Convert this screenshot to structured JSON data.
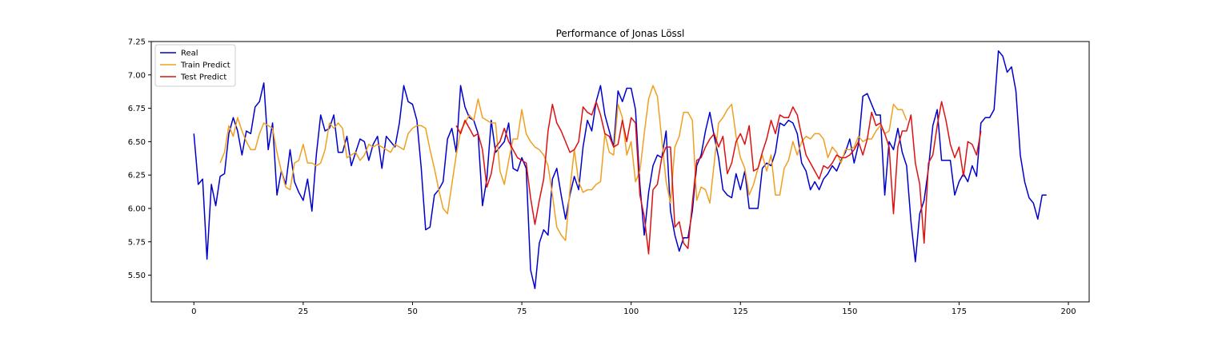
{
  "chart_data": {
    "type": "line",
    "title": "Performance of Jonas Lössl",
    "xlabel": "",
    "ylabel": "",
    "xlim": [
      -9.75,
      204.75
    ],
    "ylim": [
      5.3,
      7.25
    ],
    "xticks": [
      0,
      25,
      50,
      75,
      100,
      125,
      150,
      175,
      200
    ],
    "yticks": [
      5.5,
      5.75,
      6.0,
      6.25,
      6.5,
      6.75,
      7.0,
      7.25
    ],
    "ytick_labels": [
      "5.50",
      "5.75",
      "6.00",
      "6.25",
      "6.50",
      "6.75",
      "7.00",
      "7.25"
    ],
    "grid": false,
    "legend_position": "top-left",
    "series": [
      {
        "name": "Real",
        "color": "#0000cc",
        "x_start": 0,
        "values": [
          6.56,
          6.18,
          6.22,
          5.62,
          6.18,
          6.02,
          6.24,
          6.26,
          6.56,
          6.68,
          6.58,
          6.4,
          6.58,
          6.56,
          6.76,
          6.8,
          6.94,
          6.44,
          6.64,
          6.1,
          6.28,
          6.18,
          6.44,
          6.2,
          6.12,
          6.06,
          6.22,
          5.98,
          6.4,
          6.7,
          6.58,
          6.6,
          6.7,
          6.42,
          6.42,
          6.54,
          6.32,
          6.42,
          6.52,
          6.5,
          6.36,
          6.48,
          6.54,
          6.3,
          6.54,
          6.5,
          6.46,
          6.64,
          6.92,
          6.8,
          6.78,
          6.66,
          6.3,
          5.84,
          5.86,
          6.1,
          6.14,
          6.2,
          6.52,
          6.6,
          6.42,
          6.92,
          6.76,
          6.68,
          6.66,
          6.56,
          6.02,
          6.22,
          6.66,
          6.42,
          6.46,
          6.5,
          6.64,
          6.3,
          6.28,
          6.38,
          6.3,
          5.54,
          5.4,
          5.74,
          5.84,
          5.8,
          6.22,
          6.3,
          6.1,
          5.92,
          6.1,
          6.24,
          6.14,
          6.46,
          6.66,
          6.58,
          6.8,
          6.92,
          6.7,
          6.58,
          6.46,
          6.88,
          6.8,
          6.9,
          6.9,
          6.74,
          6.18,
          5.8,
          6.12,
          6.32,
          6.4,
          6.38,
          6.58,
          5.98,
          5.8,
          5.68,
          5.78,
          5.78,
          5.98,
          6.32,
          6.4,
          6.58,
          6.72,
          6.54,
          6.38,
          6.14,
          6.1,
          6.08,
          6.26,
          6.14,
          6.28,
          6.0,
          6.0,
          6.0,
          6.3,
          6.34,
          6.32,
          6.42,
          6.64,
          6.62,
          6.66,
          6.64,
          6.56,
          6.34,
          6.28,
          6.14,
          6.2,
          6.14,
          6.22,
          6.26,
          6.32,
          6.28,
          6.36,
          6.42,
          6.52,
          6.34,
          6.48,
          6.84,
          6.86,
          6.78,
          6.7,
          6.7,
          6.1,
          6.5,
          6.44,
          6.6,
          6.42,
          6.32,
          5.9,
          5.6,
          5.96,
          6.06,
          6.3,
          6.62,
          6.74,
          6.36,
          6.36,
          6.36,
          6.1,
          6.2,
          6.26,
          6.2,
          6.32,
          6.24,
          6.64,
          6.68,
          6.68,
          6.74,
          7.18,
          7.14,
          7.02,
          7.06,
          6.88,
          6.4,
          6.2,
          6.08,
          6.04,
          5.92,
          6.1,
          6.1
        ]
      },
      {
        "name": "Train Predict",
        "color": "#f0a020",
        "x_start": 6,
        "values": [
          6.34,
          6.42,
          6.62,
          6.54,
          6.68,
          6.58,
          6.5,
          6.44,
          6.44,
          6.56,
          6.64,
          6.62,
          6.6,
          6.42,
          6.28,
          6.16,
          6.14,
          6.34,
          6.36,
          6.48,
          6.34,
          6.34,
          6.32,
          6.34,
          6.44,
          6.64,
          6.6,
          6.64,
          6.6,
          6.38,
          6.4,
          6.42,
          6.36,
          6.4,
          6.48,
          6.46,
          6.48,
          6.46,
          6.44,
          6.42,
          6.48,
          6.46,
          6.44,
          6.56,
          6.6,
          6.62,
          6.62,
          6.6,
          6.44,
          6.3,
          6.14,
          6.0,
          5.96,
          6.18,
          6.4,
          6.58,
          6.64,
          6.7,
          6.66,
          6.82,
          6.68,
          6.66,
          6.64,
          6.64,
          6.28,
          6.18,
          6.36,
          6.52,
          6.52,
          6.74,
          6.56,
          6.5,
          6.46,
          6.44,
          6.4,
          6.32,
          6.1,
          5.86,
          5.8,
          5.76,
          6.14,
          6.44,
          6.2,
          6.12,
          6.14,
          6.14,
          6.18,
          6.2,
          6.56,
          6.42,
          6.4,
          6.78,
          6.68,
          6.4,
          6.5,
          6.2,
          6.28,
          6.56,
          6.82,
          6.92,
          6.84,
          6.52,
          6.2,
          6.04,
          6.46,
          6.54,
          6.72,
          6.72,
          6.66,
          6.06,
          6.16,
          6.14,
          6.04,
          6.34,
          6.64,
          6.68,
          6.74,
          6.78,
          6.54,
          6.38,
          6.3,
          6.1,
          6.18,
          6.3,
          6.4,
          6.28,
          6.4,
          6.1,
          6.1,
          6.3,
          6.36,
          6.5,
          6.4,
          6.5,
          6.54,
          6.52,
          6.56,
          6.56,
          6.52,
          6.38,
          6.46,
          6.42,
          6.34,
          6.44,
          6.44,
          6.46,
          6.54,
          6.5,
          6.52,
          6.52,
          6.58,
          6.62,
          6.56,
          6.58,
          6.78,
          6.74,
          6.74,
          6.66
        ]
      },
      {
        "name": "Test Predict",
        "color": "#dd1111",
        "x_start": 60,
        "values": [
          6.62,
          6.56,
          6.66,
          6.6,
          6.54,
          6.56,
          6.44,
          6.16,
          6.26,
          6.46,
          6.5,
          6.6,
          6.5,
          6.44,
          6.38,
          6.36,
          6.34,
          6.08,
          5.88,
          6.06,
          6.22,
          6.58,
          6.78,
          6.64,
          6.58,
          6.5,
          6.42,
          6.44,
          6.5,
          6.76,
          6.72,
          6.7,
          6.8,
          6.7,
          6.56,
          6.54,
          6.46,
          6.48,
          6.66,
          6.5,
          6.68,
          6.64,
          6.1,
          5.94,
          5.66,
          6.14,
          6.18,
          6.38,
          6.46,
          6.46,
          5.86,
          5.9,
          5.74,
          5.7,
          6.04,
          6.36,
          6.38,
          6.46,
          6.52,
          6.56,
          6.46,
          6.54,
          6.26,
          6.34,
          6.5,
          6.56,
          6.48,
          6.62,
          6.28,
          6.3,
          6.42,
          6.52,
          6.66,
          6.56,
          6.7,
          6.68,
          6.68,
          6.76,
          6.7,
          6.54,
          6.4,
          6.34,
          6.28,
          6.22,
          6.32,
          6.3,
          6.34,
          6.4,
          6.38,
          6.38,
          6.4,
          6.44,
          6.5,
          6.4,
          6.52,
          6.72,
          6.62,
          6.64,
          6.56,
          6.46,
          5.96,
          6.46,
          6.58,
          6.58,
          6.7,
          6.34,
          6.18,
          5.74,
          6.34,
          6.4,
          6.62,
          6.8,
          6.66,
          6.48,
          6.38,
          6.46,
          6.24,
          6.5,
          6.48,
          6.4,
          6.58
        ]
      }
    ]
  }
}
